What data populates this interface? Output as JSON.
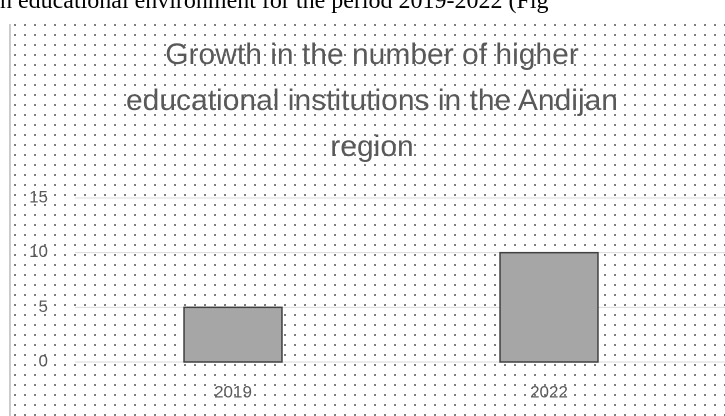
{
  "caption": "h educational environment for the period 2019-2022 (Fig",
  "chart_data": {
    "type": "bar",
    "title": "Growth in the number of higher educational institutions in the Andijan region",
    "categories": [
      "2019",
      "2022"
    ],
    "values": [
      5,
      10
    ],
    "color": "#a6a6a6",
    "ylim": [
      0,
      15
    ],
    "yticks": [
      0,
      5,
      10,
      15
    ],
    "grid": true
  }
}
